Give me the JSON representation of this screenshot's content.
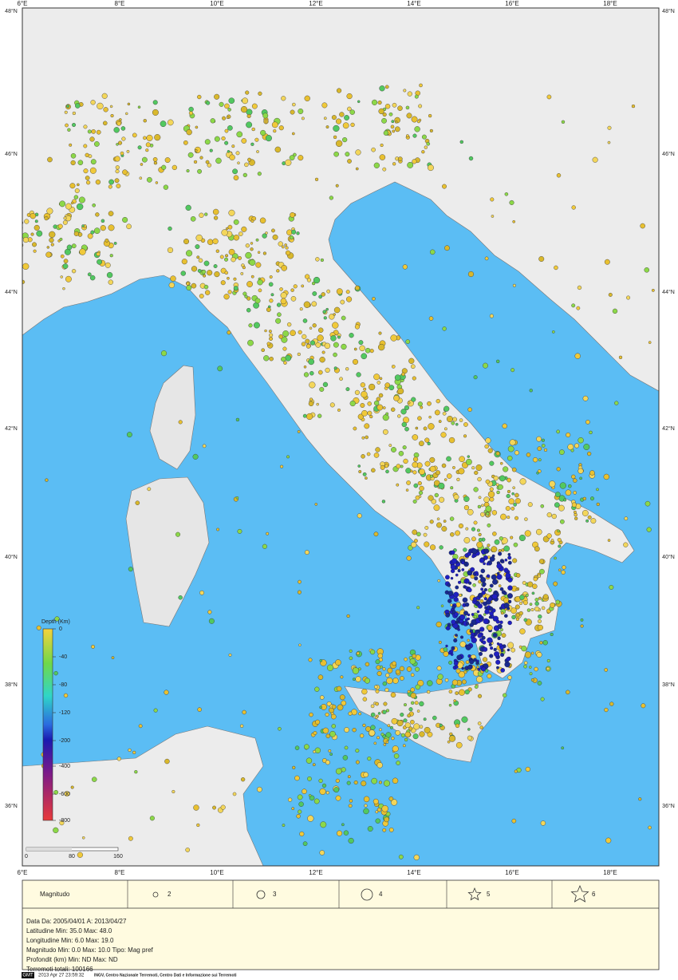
{
  "map": {
    "lon_labels": [
      "6°E",
      "8°E",
      "10°E",
      "12°E",
      "14°E",
      "16°E",
      "18°E"
    ],
    "lat_labels": [
      "48°N",
      "46°N",
      "44°N",
      "42°N",
      "40°N",
      "38°N",
      "36°N"
    ],
    "colorbar": {
      "title": "Depth (Km)",
      "labels": [
        "0",
        "-40",
        "-80",
        "-120",
        "-200",
        "-400",
        "-600",
        "-800"
      ]
    },
    "scale_labels": [
      "0",
      "80",
      "160"
    ]
  },
  "legend": {
    "title": "Magnitudo",
    "items": [
      "2",
      "3",
      "4",
      "5",
      "6"
    ]
  },
  "info": [
    "Data Da: 2005/04/01  A: 2013/04/27",
    "Latitudine Min: 35.0  Max: 48.0",
    "Longitudine Min: 6.0  Max: 19.0",
    "Magnitudo Min: 0.0 Max: 10.0 Tipo: Mag pref",
    "Profondit (km) Min: ND  Max: ND",
    "Terremoti totali:   100166"
  ],
  "footer": {
    "logo": "GMT",
    "timestamp": "2013 Apr 27 23:59:32",
    "credit": "INGV, Centro Nazionale Terremoti, Centro Dati e Informazione sui Terremoti"
  }
}
